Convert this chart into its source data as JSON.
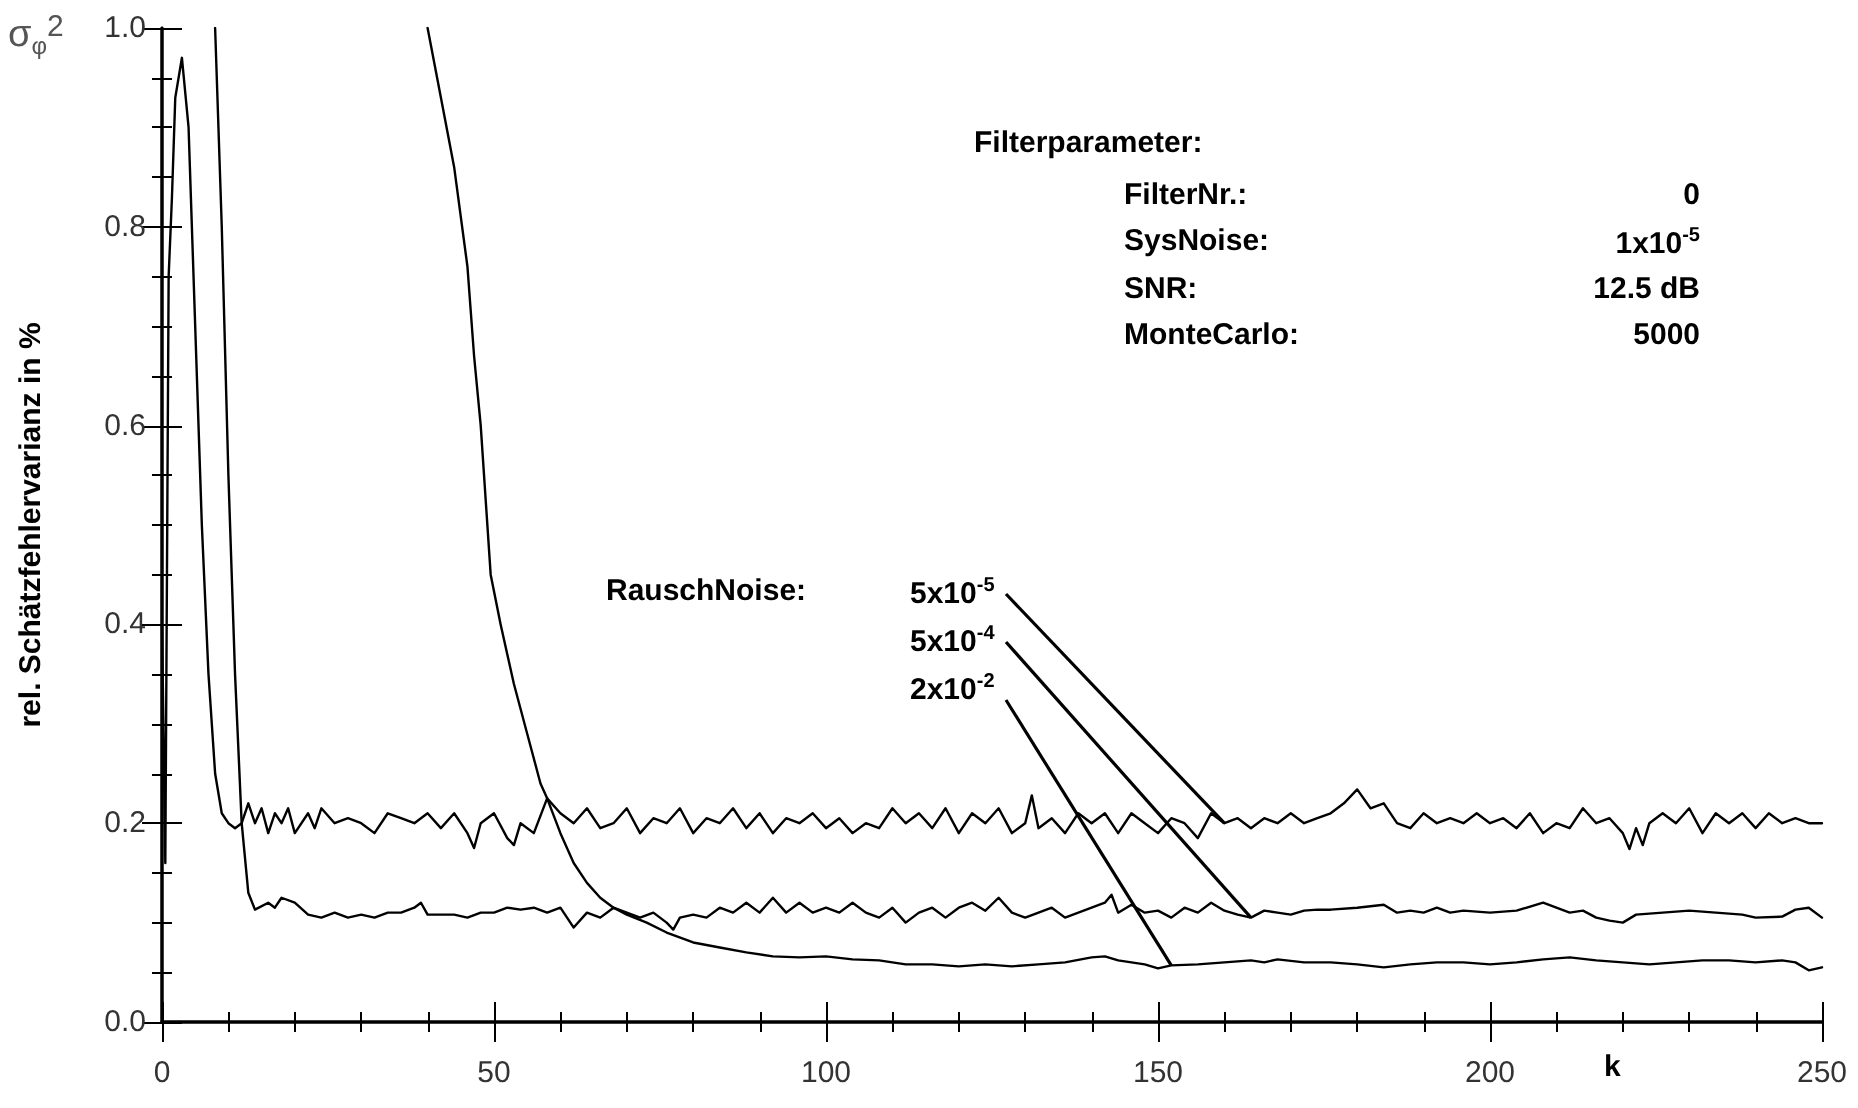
{
  "chart_data": {
    "type": "line",
    "xlabel": "k",
    "ylabel": "rel. Schätzfehlervarianz in %",
    "xlim": [
      0,
      250
    ],
    "xticks": [
      0,
      50,
      100,
      150,
      200,
      250
    ],
    "ylim": [
      0,
      1.0
    ],
    "yticks": [
      {
        "value": 0,
        "label": "0.0"
      },
      {
        "value": 0.2,
        "label": "0.2"
      },
      {
        "value": 0.4,
        "label": "0.4"
      },
      {
        "value": 0.6,
        "label": "0.6"
      },
      {
        "value": 0.8,
        "label": "0.8"
      },
      {
        "value": 1.0,
        "label": "1.0"
      }
    ],
    "grid": false,
    "marker": "none",
    "line_style": "solid",
    "annotations": [
      "Filterparameter:",
      "FilterNr.:",
      "0",
      "SysNoise:",
      "1x10$^{-5}$",
      "SNR:",
      "12.5 dB",
      "MonteCarlo:",
      "5000",
      "RauschNoise:",
      "σ$_{φ}$$^{2}$",
      {
        "text": "5x10$^{-5}$",
        "x": 160,
        "y": 0.2
      },
      {
        "text": "5x10$^{-4}$",
        "x": 164,
        "y": 0.105
      },
      {
        "text": "2x10$^{-2}$",
        "x": 152,
        "y": 0.057
      }
    ],
    "series": [
      {
        "color": "#000000",
        "x": [
          0,
          0.5,
          1,
          1.5,
          2,
          3,
          4,
          5,
          6,
          7,
          8,
          9,
          10,
          11,
          12,
          13,
          14,
          15,
          16,
          17,
          18,
          19,
          20,
          22,
          23,
          24,
          26,
          28,
          30,
          32,
          34,
          36,
          38,
          40,
          42,
          44,
          46,
          47,
          48,
          50,
          52,
          53,
          54,
          56,
          58,
          60,
          62,
          64,
          66,
          68,
          70,
          72,
          74,
          76,
          78,
          80,
          82,
          84,
          86,
          88,
          90,
          92,
          94,
          96,
          98,
          100,
          102,
          104,
          106,
          108,
          110,
          112,
          114,
          116,
          118,
          120,
          122,
          124,
          126,
          128,
          130,
          131,
          132,
          134,
          136,
          138,
          140,
          142,
          144,
          146,
          148,
          150,
          152,
          154,
          156,
          158,
          160,
          162,
          164,
          166,
          168,
          170,
          172,
          174,
          176,
          178,
          180,
          182,
          184,
          186,
          188,
          190,
          192,
          194,
          196,
          198,
          200,
          202,
          204,
          206,
          208,
          210,
          212,
          214,
          216,
          218,
          220,
          221,
          222,
          223,
          224,
          226,
          228,
          230,
          232,
          234,
          236,
          238,
          240,
          242,
          244,
          246,
          248,
          250
        ],
        "values": [
          0.4,
          0.16,
          0.75,
          0.83,
          0.93,
          0.97,
          0.9,
          0.7,
          0.5,
          0.35,
          0.25,
          0.21,
          0.2,
          0.195,
          0.2,
          0.22,
          0.2,
          0.215,
          0.19,
          0.21,
          0.2,
          0.215,
          0.19,
          0.21,
          0.195,
          0.215,
          0.2,
          0.205,
          0.2,
          0.19,
          0.21,
          0.205,
          0.2,
          0.21,
          0.195,
          0.21,
          0.19,
          0.175,
          0.2,
          0.21,
          0.185,
          0.178,
          0.2,
          0.19,
          0.225,
          0.21,
          0.2,
          0.215,
          0.195,
          0.2,
          0.215,
          0.19,
          0.205,
          0.2,
          0.215,
          0.19,
          0.205,
          0.2,
          0.215,
          0.195,
          0.21,
          0.19,
          0.205,
          0.2,
          0.21,
          0.195,
          0.205,
          0.19,
          0.2,
          0.195,
          0.215,
          0.2,
          0.21,
          0.195,
          0.215,
          0.19,
          0.21,
          0.2,
          0.215,
          0.19,
          0.2,
          0.228,
          0.195,
          0.205,
          0.19,
          0.21,
          0.2,
          0.21,
          0.19,
          0.21,
          0.2,
          0.19,
          0.205,
          0.2,
          0.185,
          0.21,
          0.2,
          0.205,
          0.195,
          0.205,
          0.2,
          0.21,
          0.2,
          0.205,
          0.21,
          0.22,
          0.234,
          0.215,
          0.22,
          0.2,
          0.195,
          0.21,
          0.2,
          0.205,
          0.2,
          0.21,
          0.2,
          0.205,
          0.195,
          0.21,
          0.19,
          0.2,
          0.195,
          0.215,
          0.2,
          0.205,
          0.19,
          0.174,
          0.195,
          0.178,
          0.2,
          0.21,
          0.2,
          0.215,
          0.19,
          0.21,
          0.2,
          0.21,
          0.195,
          0.21,
          0.2,
          0.205,
          0.2,
          0.2
        ]
      },
      {
        "color": "#000000",
        "x": [
          8,
          9,
          10,
          11,
          12,
          13,
          14,
          16,
          17,
          18,
          20,
          22,
          24,
          26,
          28,
          30,
          32,
          34,
          36,
          38,
          39,
          40,
          44,
          46,
          48,
          50,
          52,
          54,
          56,
          58,
          60,
          62,
          64,
          66,
          68,
          70,
          72,
          74,
          76,
          77,
          78,
          80,
          82,
          84,
          86,
          88,
          90,
          92,
          94,
          96,
          98,
          100,
          102,
          104,
          106,
          108,
          110,
          112,
          114,
          116,
          118,
          120,
          122,
          124,
          126,
          128,
          130,
          132,
          134,
          136,
          138,
          140,
          142,
          143,
          144,
          146,
          148,
          150,
          152,
          154,
          156,
          158,
          160,
          162,
          164,
          166,
          168,
          170,
          172,
          174,
          176,
          180,
          184,
          186,
          188,
          190,
          192,
          194,
          196,
          200,
          204,
          208,
          210,
          212,
          214,
          216,
          218,
          220,
          222,
          226,
          230,
          234,
          238,
          240,
          244,
          246,
          248,
          250
        ],
        "values": [
          1.0,
          0.8,
          0.55,
          0.35,
          0.2,
          0.13,
          0.113,
          0.12,
          0.115,
          0.125,
          0.12,
          0.108,
          0.105,
          0.11,
          0.105,
          0.108,
          0.105,
          0.11,
          0.11,
          0.115,
          0.12,
          0.108,
          0.108,
          0.105,
          0.11,
          0.11,
          0.115,
          0.113,
          0.115,
          0.11,
          0.115,
          0.095,
          0.11,
          0.105,
          0.115,
          0.11,
          0.105,
          0.11,
          0.1,
          0.093,
          0.105,
          0.108,
          0.105,
          0.115,
          0.11,
          0.12,
          0.11,
          0.125,
          0.11,
          0.12,
          0.11,
          0.115,
          0.11,
          0.12,
          0.11,
          0.105,
          0.115,
          0.1,
          0.11,
          0.115,
          0.105,
          0.115,
          0.12,
          0.112,
          0.125,
          0.11,
          0.105,
          0.11,
          0.115,
          0.105,
          0.11,
          0.115,
          0.12,
          0.128,
          0.11,
          0.118,
          0.11,
          0.112,
          0.105,
          0.115,
          0.11,
          0.12,
          0.112,
          0.108,
          0.105,
          0.112,
          0.11,
          0.108,
          0.112,
          0.113,
          0.113,
          0.115,
          0.118,
          0.11,
          0.112,
          0.11,
          0.115,
          0.11,
          0.112,
          0.11,
          0.112,
          0.12,
          0.115,
          0.11,
          0.112,
          0.105,
          0.102,
          0.1,
          0.108,
          0.11,
          0.112,
          0.11,
          0.108,
          0.105,
          0.106,
          0.113,
          0.115,
          0.105
        ]
      },
      {
        "color": "#000000",
        "x": [
          40,
          42,
          44,
          46,
          47,
          48,
          49.5,
          51,
          53,
          55,
          57,
          58,
          60,
          62,
          64,
          66,
          68,
          70,
          73,
          76,
          80,
          84,
          88,
          92,
          96,
          100,
          104,
          108,
          112,
          116,
          120,
          124,
          128,
          132,
          136,
          140,
          142,
          144,
          148,
          150,
          152,
          156,
          160,
          164,
          166,
          168,
          172,
          176,
          180,
          184,
          188,
          192,
          196,
          200,
          204,
          208,
          212,
          216,
          220,
          224,
          228,
          232,
          236,
          240,
          244,
          246,
          248,
          250
        ],
        "values": [
          1.0,
          0.93,
          0.86,
          0.76,
          0.67,
          0.6,
          0.45,
          0.4,
          0.34,
          0.29,
          0.24,
          0.225,
          0.19,
          0.16,
          0.14,
          0.125,
          0.115,
          0.108,
          0.1,
          0.09,
          0.08,
          0.075,
          0.07,
          0.066,
          0.065,
          0.066,
          0.063,
          0.062,
          0.058,
          0.058,
          0.056,
          0.058,
          0.056,
          0.058,
          0.06,
          0.065,
          0.066,
          0.062,
          0.058,
          0.054,
          0.057,
          0.058,
          0.06,
          0.062,
          0.06,
          0.063,
          0.06,
          0.06,
          0.058,
          0.055,
          0.058,
          0.06,
          0.06,
          0.058,
          0.06,
          0.063,
          0.065,
          0.062,
          0.06,
          0.058,
          0.06,
          0.062,
          0.062,
          0.06,
          0.062,
          0.06,
          0.052,
          0.055
        ]
      }
    ]
  }
}
